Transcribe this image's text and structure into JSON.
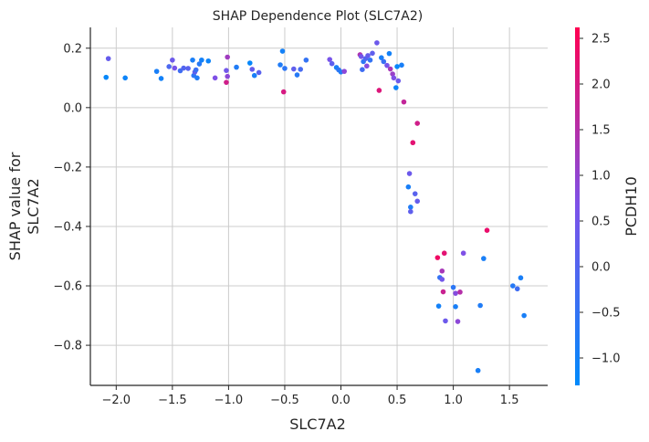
{
  "chart_data": {
    "type": "scatter",
    "title": "SHAP Dependence Plot (SLC7A2)",
    "xlabel": "SLC7A2",
    "ylabel_lines": [
      "SHAP value for",
      "SLC7A2"
    ],
    "xlim": [
      -2.23,
      1.84
    ],
    "ylim": [
      -0.935,
      0.27
    ],
    "xticks": [
      -2.0,
      -1.5,
      -1.0,
      -0.5,
      0.0,
      0.5,
      1.0,
      1.5
    ],
    "xtick_labels": [
      "−2.0",
      "−1.5",
      "−1.0",
      "−0.5",
      "0.0",
      "0.5",
      "1.0",
      "1.5"
    ],
    "yticks": [
      0.2,
      0.0,
      -0.2,
      -0.4,
      -0.6,
      -0.8
    ],
    "ytick_labels": [
      "0.2",
      "0.0",
      "−0.2",
      "−0.4",
      "−0.6",
      "−0.8"
    ],
    "grid": true,
    "colorbar": {
      "label": "PCDH10",
      "range": [
        -1.3,
        2.62
      ],
      "ticks": [
        2.5,
        2.0,
        1.5,
        1.0,
        0.5,
        0.0,
        -0.5,
        -1.0
      ],
      "tick_labels": [
        "2.5",
        "2.0",
        "1.5",
        "1.0",
        "0.5",
        "0.0",
        "−0.5",
        "−1.0"
      ],
      "colormap": [
        "#008afb",
        "#7c52e9",
        "#ff0052"
      ]
    },
    "points": [
      {
        "x": -2.09,
        "y": 0.102,
        "c": -1.2
      },
      {
        "x": -2.07,
        "y": 0.165,
        "c": 0.3
      },
      {
        "x": -1.92,
        "y": 0.1,
        "c": -1.1
      },
      {
        "x": -1.64,
        "y": 0.122,
        "c": -0.9
      },
      {
        "x": -1.6,
        "y": 0.098,
        "c": -1.0
      },
      {
        "x": -1.53,
        "y": 0.138,
        "c": -0.1
      },
      {
        "x": -1.5,
        "y": 0.16,
        "c": 0.4
      },
      {
        "x": -1.48,
        "y": 0.133,
        "c": 0.6
      },
      {
        "x": -1.43,
        "y": 0.124,
        "c": -0.3
      },
      {
        "x": -1.4,
        "y": 0.133,
        "c": 0.0
      },
      {
        "x": -1.36,
        "y": 0.132,
        "c": 0.1
      },
      {
        "x": -1.32,
        "y": 0.16,
        "c": -0.9
      },
      {
        "x": -1.31,
        "y": 0.108,
        "c": -0.6
      },
      {
        "x": -1.3,
        "y": 0.12,
        "c": 0.2
      },
      {
        "x": -1.29,
        "y": 0.127,
        "c": -0.4
      },
      {
        "x": -1.28,
        "y": 0.1,
        "c": -0.8
      },
      {
        "x": -1.26,
        "y": 0.147,
        "c": -0.7
      },
      {
        "x": -1.24,
        "y": 0.16,
        "c": -1.0
      },
      {
        "x": -1.18,
        "y": 0.157,
        "c": -1.1
      },
      {
        "x": -1.12,
        "y": 0.1,
        "c": 0.7
      },
      {
        "x": -1.02,
        "y": 0.125,
        "c": 0.5
      },
      {
        "x": -1.02,
        "y": 0.085,
        "c": 1.9
      },
      {
        "x": -1.01,
        "y": 0.105,
        "c": 0.9
      },
      {
        "x": -1.01,
        "y": 0.17,
        "c": 1.2
      },
      {
        "x": -0.93,
        "y": 0.136,
        "c": -0.8
      },
      {
        "x": -0.81,
        "y": 0.15,
        "c": -1.2
      },
      {
        "x": -0.79,
        "y": 0.129,
        "c": 0.3
      },
      {
        "x": -0.77,
        "y": 0.108,
        "c": -0.9
      },
      {
        "x": -0.73,
        "y": 0.118,
        "c": 0.1
      },
      {
        "x": -0.54,
        "y": 0.144,
        "c": -0.8
      },
      {
        "x": -0.52,
        "y": 0.19,
        "c": -1.0
      },
      {
        "x": -0.51,
        "y": 0.053,
        "c": 2.0
      },
      {
        "x": -0.5,
        "y": 0.132,
        "c": -0.6
      },
      {
        "x": -0.42,
        "y": 0.13,
        "c": 0.2
      },
      {
        "x": -0.39,
        "y": 0.11,
        "c": -0.7
      },
      {
        "x": -0.36,
        "y": 0.129,
        "c": -0.2
      },
      {
        "x": -0.31,
        "y": 0.16,
        "c": -0.5
      },
      {
        "x": -0.1,
        "y": 0.162,
        "c": 0.6
      },
      {
        "x": -0.08,
        "y": 0.148,
        "c": 0.2
      },
      {
        "x": -0.04,
        "y": 0.135,
        "c": -0.9
      },
      {
        "x": -0.02,
        "y": 0.127,
        "c": -0.6
      },
      {
        "x": 0.0,
        "y": 0.12,
        "c": -0.8
      },
      {
        "x": 0.03,
        "y": 0.122,
        "c": 0.9
      },
      {
        "x": 0.17,
        "y": 0.178,
        "c": 1.4
      },
      {
        "x": 0.18,
        "y": 0.172,
        "c": 0.5
      },
      {
        "x": 0.19,
        "y": 0.128,
        "c": -0.3
      },
      {
        "x": 0.2,
        "y": 0.155,
        "c": -0.6
      },
      {
        "x": 0.22,
        "y": 0.165,
        "c": 0.0
      },
      {
        "x": 0.23,
        "y": 0.14,
        "c": 0.8
      },
      {
        "x": 0.24,
        "y": 0.175,
        "c": 0.3
      },
      {
        "x": 0.26,
        "y": 0.16,
        "c": -0.5
      },
      {
        "x": 0.28,
        "y": 0.183,
        "c": 0.2
      },
      {
        "x": 0.32,
        "y": 0.218,
        "c": 0.4
      },
      {
        "x": 0.34,
        "y": 0.058,
        "c": 2.1
      },
      {
        "x": 0.36,
        "y": 0.168,
        "c": -0.9
      },
      {
        "x": 0.38,
        "y": 0.155,
        "c": -0.4
      },
      {
        "x": 0.41,
        "y": 0.142,
        "c": 0.6
      },
      {
        "x": 0.43,
        "y": 0.182,
        "c": -1.0
      },
      {
        "x": 0.44,
        "y": 0.13,
        "c": 1.3
      },
      {
        "x": 0.46,
        "y": 0.113,
        "c": 1.1
      },
      {
        "x": 0.47,
        "y": 0.1,
        "c": 0.7
      },
      {
        "x": 0.49,
        "y": 0.067,
        "c": -1.1
      },
      {
        "x": 0.5,
        "y": 0.138,
        "c": -1.2
      },
      {
        "x": 0.51,
        "y": 0.09,
        "c": 0.4
      },
      {
        "x": 0.54,
        "y": 0.143,
        "c": -0.9
      },
      {
        "x": 0.56,
        "y": 0.019,
        "c": 1.7
      },
      {
        "x": 0.68,
        "y": -0.053,
        "c": 1.9
      },
      {
        "x": 0.64,
        "y": -0.118,
        "c": 2.2
      },
      {
        "x": 0.61,
        "y": -0.222,
        "c": 0.4
      },
      {
        "x": 0.6,
        "y": -0.267,
        "c": -0.9
      },
      {
        "x": 0.66,
        "y": -0.29,
        "c": 0.1
      },
      {
        "x": 0.68,
        "y": -0.315,
        "c": 0.3
      },
      {
        "x": 0.62,
        "y": -0.335,
        "c": -0.8
      },
      {
        "x": 0.62,
        "y": -0.35,
        "c": 0.2
      },
      {
        "x": 1.3,
        "y": -0.413,
        "c": 2.3
      },
      {
        "x": 0.86,
        "y": -0.505,
        "c": 2.4
      },
      {
        "x": 0.92,
        "y": -0.49,
        "c": 2.2
      },
      {
        "x": 1.09,
        "y": -0.49,
        "c": 0.7
      },
      {
        "x": 1.27,
        "y": -0.508,
        "c": -0.9
      },
      {
        "x": 0.9,
        "y": -0.55,
        "c": 1.3
      },
      {
        "x": 0.88,
        "y": -0.572,
        "c": -0.5
      },
      {
        "x": 0.9,
        "y": -0.578,
        "c": 0.5
      },
      {
        "x": 1.6,
        "y": -0.573,
        "c": -0.9
      },
      {
        "x": 1.0,
        "y": -0.605,
        "c": -0.6
      },
      {
        "x": 1.53,
        "y": -0.6,
        "c": -0.7
      },
      {
        "x": 1.57,
        "y": -0.61,
        "c": -0.3
      },
      {
        "x": 0.91,
        "y": -0.62,
        "c": 1.8
      },
      {
        "x": 1.02,
        "y": -0.625,
        "c": 0.8
      },
      {
        "x": 1.06,
        "y": -0.621,
        "c": 1.5
      },
      {
        "x": 0.87,
        "y": -0.668,
        "c": -1.0
      },
      {
        "x": 1.02,
        "y": -0.67,
        "c": -0.9
      },
      {
        "x": 1.24,
        "y": -0.666,
        "c": -0.8
      },
      {
        "x": 0.93,
        "y": -0.718,
        "c": 0.4
      },
      {
        "x": 1.04,
        "y": -0.72,
        "c": 0.9
      },
      {
        "x": 1.63,
        "y": -0.7,
        "c": -0.9
      },
      {
        "x": 1.22,
        "y": -0.885,
        "c": -0.9
      }
    ]
  }
}
